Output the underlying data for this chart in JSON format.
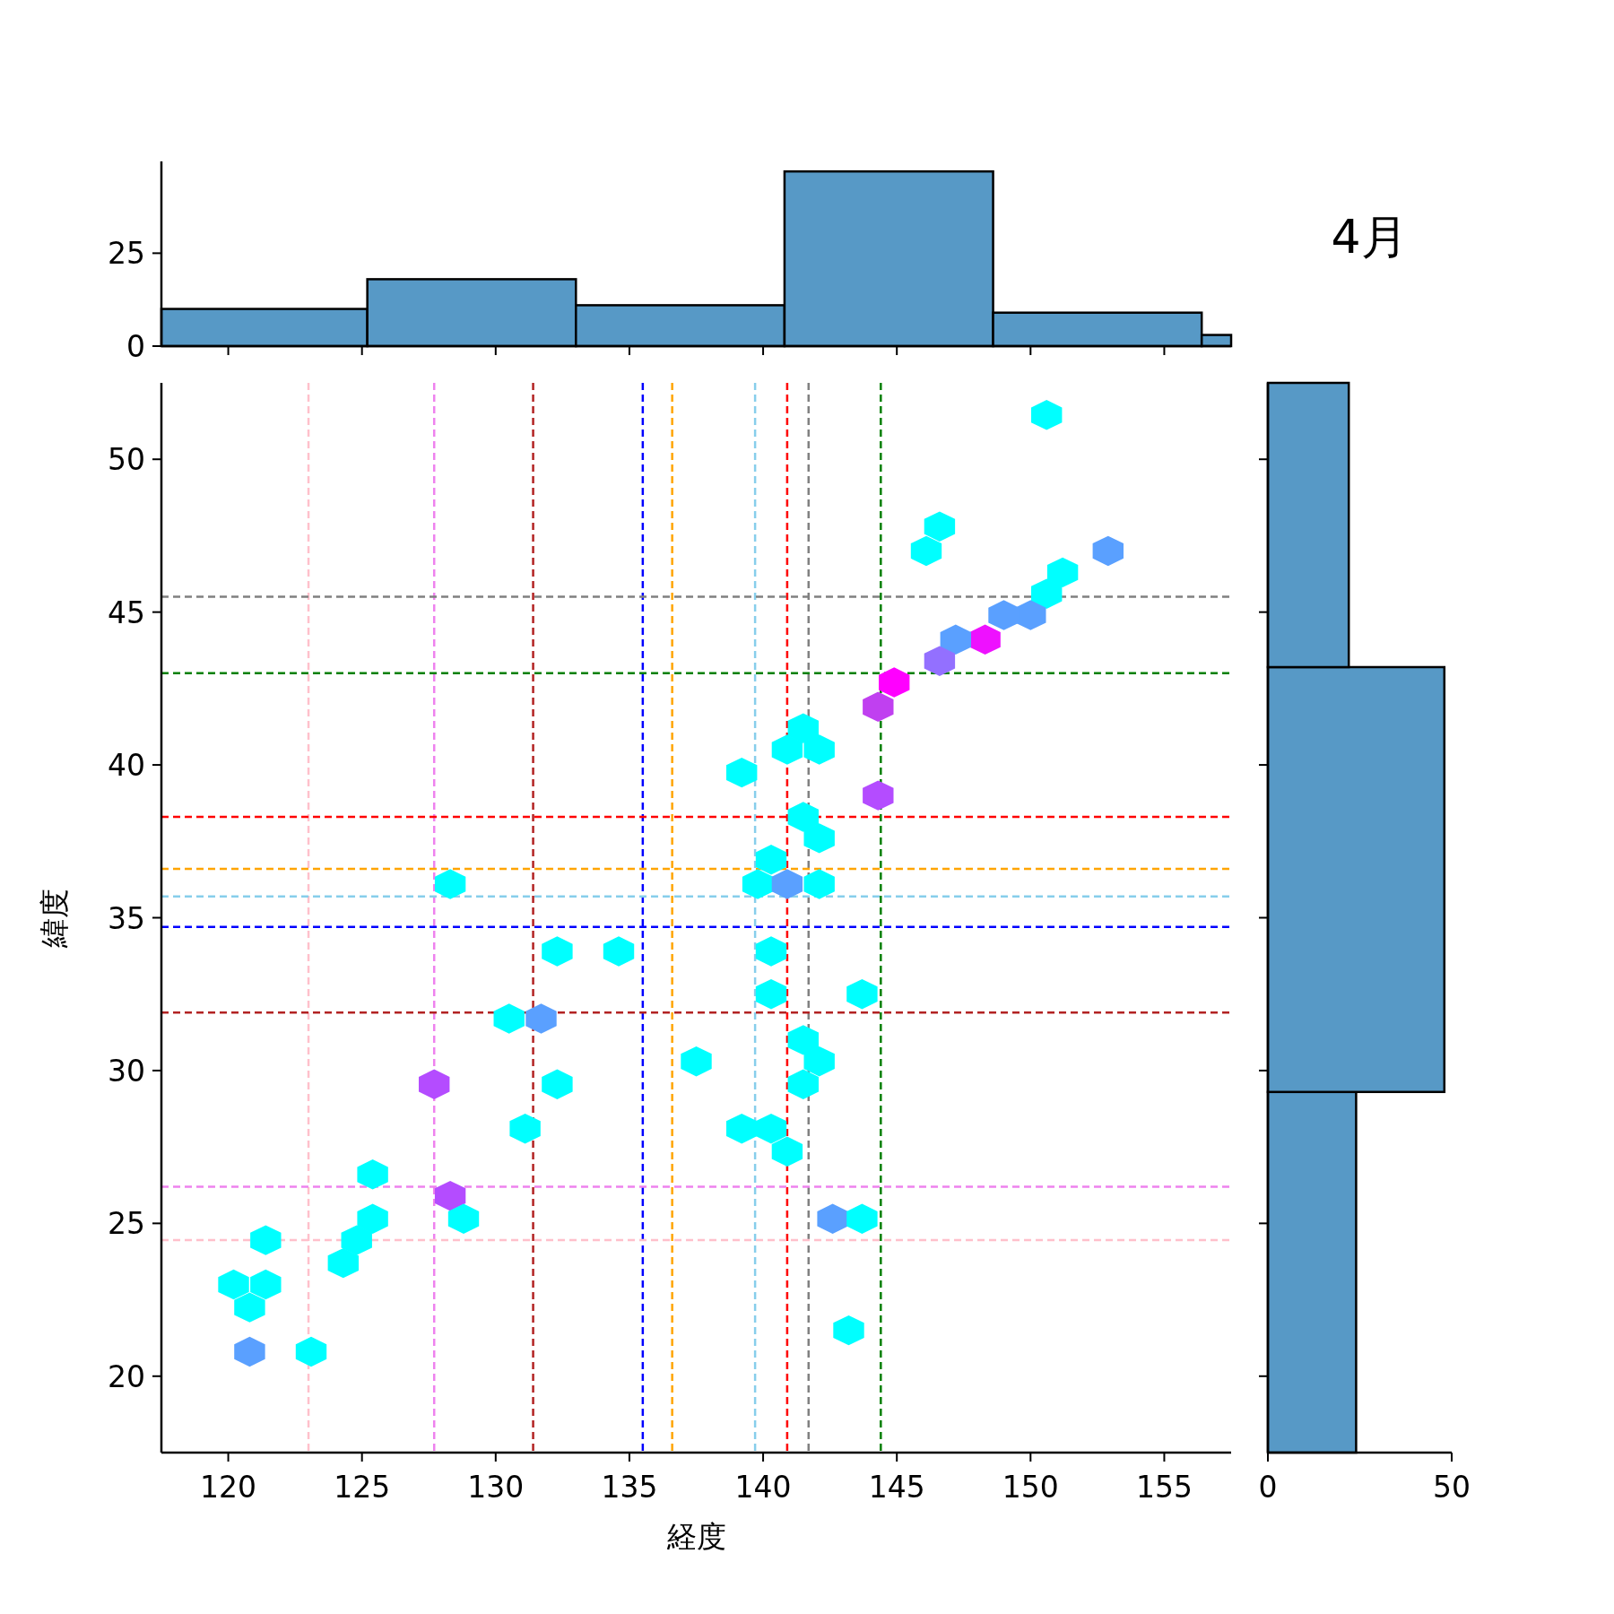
{
  "chart_data": [
    {
      "type": "histogram",
      "bins": [
        117.5,
        125.2,
        133.0,
        140.8,
        148.6,
        156.4,
        157.5
      ],
      "values": [
        10,
        18,
        11,
        47,
        9,
        3
      ],
      "color": "#5799c6",
      "xlim": [
        117.5,
        157.5
      ],
      "ylim": [
        0,
        49.7
      ],
      "yticks": [
        0,
        25
      ],
      "xticks": [
        {
          "value": 120,
          "label": null
        },
        {
          "value": 125,
          "label": null
        },
        {
          "value": 130,
          "label": null
        },
        {
          "value": 135,
          "label": null
        },
        {
          "value": 140,
          "label": null
        },
        {
          "value": 145,
          "label": null
        },
        {
          "value": 150,
          "label": null
        },
        {
          "value": 155,
          "label": null
        }
      ],
      "tick_labels": "y"
    },
    {
      "type": "scatter",
      "xlabel": "経度",
      "ylabel": "緯度",
      "xlim": [
        117.5,
        157.5
      ],
      "ylim": [
        17.5,
        52.5
      ],
      "xticks": [
        120,
        125,
        130,
        135,
        140,
        145,
        150,
        155
      ],
      "yticks": [
        20,
        25,
        30,
        35,
        40,
        45,
        50
      ],
      "x": [
        150.6,
        146.1,
        146.6,
        152.9,
        151.2,
        150.6,
        150.0,
        149.0,
        148.3,
        147.2,
        146.6,
        144.9,
        144.3,
        141.5,
        140.9,
        142.1,
        139.2,
        144.3,
        141.5,
        142.1,
        140.3,
        139.8,
        140.9,
        142.1,
        128.3,
        132.3,
        134.6,
        140.3,
        140.3,
        143.7,
        130.5,
        131.7,
        141.5,
        137.5,
        142.1,
        127.7,
        132.3,
        141.5,
        131.1,
        139.2,
        140.3,
        140.9,
        125.4,
        128.3,
        125.4,
        128.8,
        142.6,
        143.7,
        124.8,
        121.4,
        124.3,
        120.2,
        121.4,
        120.8,
        143.2,
        120.8,
        123.1
      ],
      "values": [
        51.45,
        47.0,
        47.8,
        47.0,
        46.3,
        45.6,
        44.9,
        44.9,
        44.1,
        44.1,
        43.4,
        42.7,
        41.9,
        41.2,
        40.5,
        40.5,
        39.75,
        39.0,
        38.3,
        37.6,
        36.9,
        36.1,
        36.1,
        36.1,
        36.1,
        33.9,
        33.9,
        33.9,
        32.5,
        32.5,
        31.7,
        31.7,
        31.0,
        30.3,
        30.3,
        29.55,
        29.55,
        29.55,
        28.1,
        28.1,
        28.1,
        27.35,
        26.6,
        25.9,
        25.15,
        25.15,
        25.15,
        25.15,
        24.45,
        24.45,
        23.7,
        23.0,
        23.0,
        22.25,
        21.5,
        20.8,
        20.8
      ],
      "colors": [
        "#00ffff",
        "#00ffff",
        "#00ffff",
        "#5aa0ff",
        "#00ffff",
        "#00ffff",
        "#5aa0ff",
        "#5aa0ff",
        "#ee11ff",
        "#5aa0ff",
        "#9370ff",
        "#ff00ff",
        "#c040f0",
        "#00ffff",
        "#00ffff",
        "#00ffff",
        "#00ffff",
        "#b44cff",
        "#00ffff",
        "#00ffff",
        "#00ffff",
        "#00ffff",
        "#5aa0ff",
        "#00ffff",
        "#00ffff",
        "#00ffff",
        "#00ffff",
        "#00ffff",
        "#00ffff",
        "#00ffff",
        "#00ffff",
        "#5aa0ff",
        "#00ffff",
        "#00ffff",
        "#00ffff",
        "#b44cff",
        "#00ffff",
        "#00ffff",
        "#00ffff",
        "#00ffff",
        "#00ffff",
        "#00ffff",
        "#00ffff",
        "#b44cff",
        "#00ffff",
        "#00ffff",
        "#5aa0ff",
        "#00ffff",
        "#00ffff",
        "#00ffff",
        "#00ffff",
        "#00ffff",
        "#00ffff",
        "#00ffff",
        "#00ffff",
        "#5aa0ff",
        "#00ffff"
      ],
      "ref_lines": [
        {
          "axis": "x",
          "value": 123.0,
          "color": "#ffc0cb",
          "line_style": "dashed"
        },
        {
          "axis": "x",
          "value": 127.7,
          "color": "#ee82ee",
          "line_style": "dashed"
        },
        {
          "axis": "x",
          "value": 131.4,
          "color": "#b22222",
          "line_style": "dashed"
        },
        {
          "axis": "x",
          "value": 135.5,
          "color": "#0000ff",
          "line_style": "dashed"
        },
        {
          "axis": "x",
          "value": 136.6,
          "color": "#ffa500",
          "line_style": "dashed"
        },
        {
          "axis": "x",
          "value": 139.7,
          "color": "#87ceeb",
          "line_style": "dashed"
        },
        {
          "axis": "x",
          "value": 140.9,
          "color": "#ff0000",
          "line_style": "dashed"
        },
        {
          "axis": "x",
          "value": 141.7,
          "color": "#808080",
          "line_style": "dashed"
        },
        {
          "axis": "x",
          "value": 144.4,
          "color": "#008000",
          "line_style": "dashed"
        },
        {
          "axis": "y",
          "value": 45.5,
          "color": "#808080",
          "line_style": "dashed"
        },
        {
          "axis": "y",
          "value": 43.0,
          "color": "#008000",
          "line_style": "dashed"
        },
        {
          "axis": "y",
          "value": 38.3,
          "color": "#ff0000",
          "line_style": "dashed"
        },
        {
          "axis": "y",
          "value": 36.6,
          "color": "#ffa500",
          "line_style": "dashed"
        },
        {
          "axis": "y",
          "value": 35.7,
          "color": "#87ceeb",
          "line_style": "dashed"
        },
        {
          "axis": "y",
          "value": 34.7,
          "color": "#0000ff",
          "line_style": "dashed"
        },
        {
          "axis": "y",
          "value": 31.9,
          "color": "#b22222",
          "line_style": "dashed"
        },
        {
          "axis": "y",
          "value": 26.2,
          "color": "#ee82ee",
          "line_style": "dashed"
        },
        {
          "axis": "y",
          "value": 24.45,
          "color": "#ffc0cb",
          "line_style": "dashed"
        }
      ]
    },
    {
      "type": "histogram",
      "orientation": "horizontal",
      "bins": [
        17.5,
        29.3,
        43.2,
        52.5
      ],
      "values": [
        24,
        48,
        22
      ],
      "color": "#5799c6",
      "xlim": [
        0,
        50
      ],
      "xticks": [
        0,
        50
      ],
      "ylim": [
        17.5,
        52.5
      ],
      "yticks": [
        {
          "value": 20,
          "label": null
        },
        {
          "value": 25,
          "label": null
        },
        {
          "value": 30,
          "label": null
        },
        {
          "value": 35,
          "label": null
        },
        {
          "value": 40,
          "label": null
        },
        {
          "value": 45,
          "label": null
        },
        {
          "value": 50,
          "label": null
        }
      ],
      "tick_labels": "x"
    },
    {
      "type": "other",
      "title": "4月"
    }
  ]
}
